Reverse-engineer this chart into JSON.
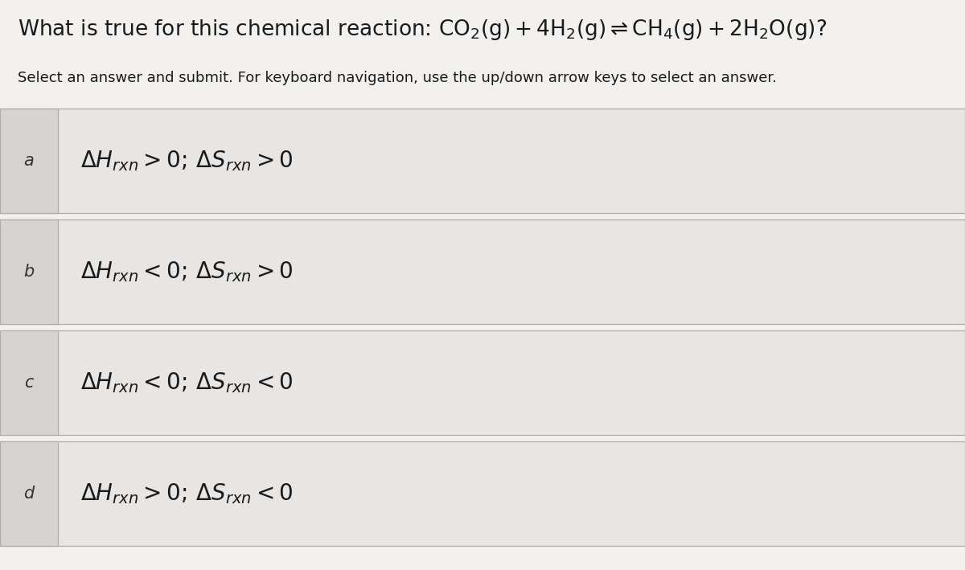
{
  "title": "What is true for this chemical reaction: $\\mathrm{CO_2(g) + 4H_2(g) \\rightleftharpoons CH_4(g) + 2H_2O(g)}$?",
  "subtitle": "Select an answer and submit. For keyboard navigation, use the up/down arrow keys to select an answer.",
  "options": [
    {
      "label": "a",
      "math": "$\\Delta H_{rxn} > 0;\\, \\Delta S_{rxn} > 0$"
    },
    {
      "label": "b",
      "math": "$\\Delta H_{rxn} < 0;\\, \\Delta S_{rxn} > 0$"
    },
    {
      "label": "c",
      "math": "$\\Delta H_{rxn} < 0;\\, \\Delta S_{rxn} < 0$"
    },
    {
      "label": "d",
      "math": "$\\Delta H_{rxn} > 0;\\, \\Delta S_{rxn} < 0$"
    }
  ],
  "bg_color": "#f2f1f0",
  "row_bg_color": "#e8e6e4",
  "label_col_bg": "#d6d3d1",
  "border_color": "#b0adaa",
  "text_color": "#1a1a1a",
  "label_color": "#333333",
  "fig_width": 12.0,
  "fig_height": 7.09
}
